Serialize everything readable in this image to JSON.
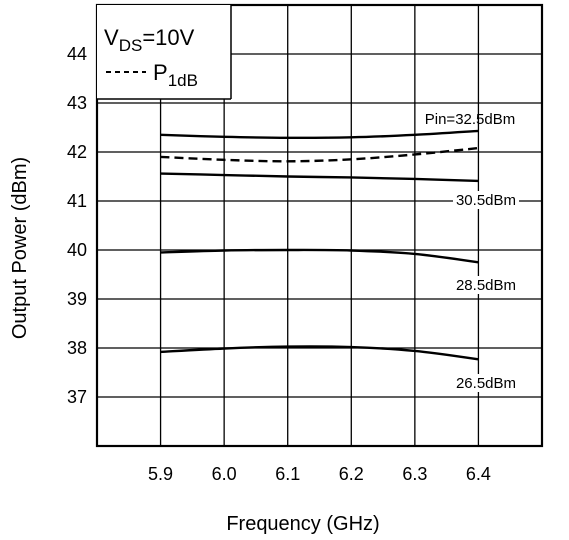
{
  "chart_data": {
    "type": "line",
    "xlabel": "Frequency (GHz)",
    "ylabel": "Output Power (dBm)",
    "x_ticks": [
      "5.9",
      "6.0",
      "6.1",
      "6.2",
      "6.3",
      "6.4"
    ],
    "y_ticks": [
      "37",
      "38",
      "39",
      "40",
      "41",
      "42",
      "43",
      "44"
    ],
    "xlim": [
      5.8,
      6.5
    ],
    "ylim": [
      36,
      45
    ],
    "grid": true,
    "legend": {
      "placement": "top-left",
      "condition_main": "V",
      "condition_sub": "DS",
      "condition_value": "=10V",
      "entry_main": "P",
      "entry_sub": "1dB"
    },
    "series": [
      {
        "name": "Pin=32.5dBm",
        "style": "solid",
        "x": [
          5.9,
          6.0,
          6.1,
          6.2,
          6.3,
          6.4
        ],
        "y": [
          42.35,
          42.31,
          42.29,
          42.3,
          42.35,
          42.43
        ]
      },
      {
        "name": "P1dB",
        "style": "dashed",
        "x": [
          5.9,
          6.0,
          6.1,
          6.2,
          6.3,
          6.4
        ],
        "y": [
          41.9,
          41.84,
          41.81,
          41.85,
          41.95,
          42.08
        ]
      },
      {
        "name": "30.5dBm",
        "style": "solid",
        "x": [
          5.9,
          6.0,
          6.1,
          6.2,
          6.3,
          6.4
        ],
        "y": [
          41.56,
          41.53,
          41.5,
          41.48,
          41.45,
          41.41
        ]
      },
      {
        "name": "28.5dBm",
        "style": "solid",
        "x": [
          5.9,
          6.0,
          6.1,
          6.2,
          6.3,
          6.4
        ],
        "y": [
          39.95,
          39.99,
          40.0,
          39.99,
          39.92,
          39.75
        ]
      },
      {
        "name": "26.5dBm",
        "style": "solid",
        "x": [
          5.9,
          6.0,
          6.1,
          6.2,
          6.3,
          6.4
        ],
        "y": [
          37.92,
          37.99,
          38.03,
          38.02,
          37.94,
          37.77
        ]
      }
    ]
  }
}
